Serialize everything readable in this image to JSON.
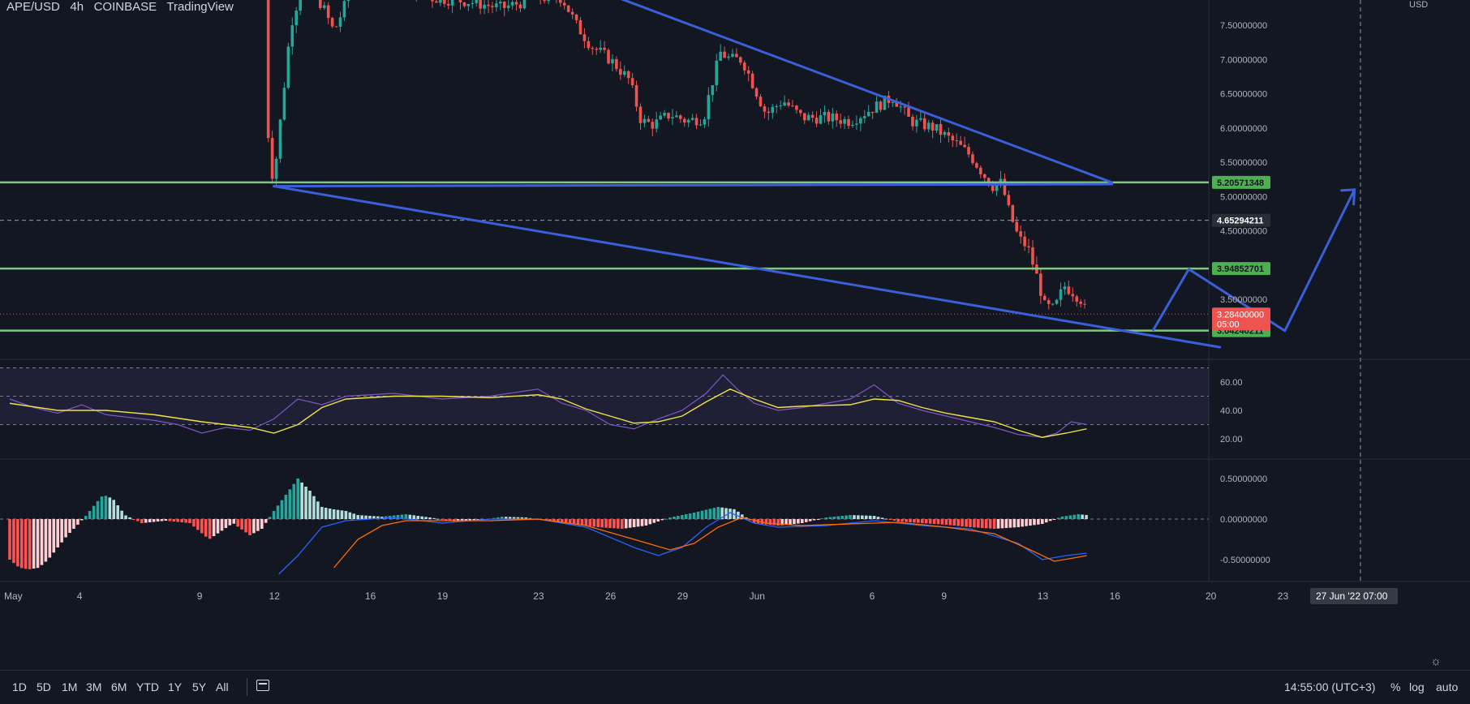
{
  "header": {
    "symbol": "APE/USD",
    "interval": "4h",
    "exchange": "COINBASE",
    "platform": "TradingView",
    "currency": "USD"
  },
  "chart_data": [
    {
      "type": "candlestick",
      "pane": "price",
      "ylim": [
        2.75,
        7.82
      ],
      "y_ticks": [
        "7.50000000",
        "7.00000000",
        "6.50000000",
        "6.00000000",
        "5.50000000",
        "5.00000000",
        "4.50000000",
        "3.50000000"
      ],
      "price_labels": [
        {
          "value": 5.20571348,
          "text": "5.20571348",
          "color": "#4caf50"
        },
        {
          "value": 4.65294211,
          "text": "4.65294211",
          "color": "#2a2e39"
        },
        {
          "value": 3.94852701,
          "text": "3.94852701",
          "color": "#4caf50"
        },
        {
          "value": 3.04240211,
          "text": "3.04240211",
          "color": "#4caf50"
        }
      ],
      "last_price": {
        "value": 3.284,
        "text": "3.28400000",
        "countdown": "05:00",
        "color": "#ef5350"
      },
      "horizontal_levels": [
        5.20571348,
        3.94852701,
        3.04240211
      ],
      "dashed_level": 4.65294211,
      "x_ticks": [
        {
          "label": "May",
          "x": 0
        },
        {
          "label": "4",
          "x": 3
        },
        {
          "label": "9",
          "x": 8
        },
        {
          "label": "12",
          "x": 11
        },
        {
          "label": "16",
          "x": 15
        },
        {
          "label": "19",
          "x": 18
        },
        {
          "label": "23",
          "x": 22
        },
        {
          "label": "26",
          "x": 25
        },
        {
          "label": "29",
          "x": 28
        },
        {
          "label": "Jun",
          "x": 31
        },
        {
          "label": "6",
          "x": 36
        },
        {
          "label": "9",
          "x": 39
        },
        {
          "label": "13",
          "x": 43
        },
        {
          "label": "16",
          "x": 46
        },
        {
          "label": "20",
          "x": 50
        },
        {
          "label": "23",
          "x": 53
        }
      ],
      "crosshair_label": "27 Jun '22   07:00",
      "close_path": [
        [
          10.6,
          7.9
        ],
        [
          10.8,
          5.5
        ],
        [
          11.0,
          5.25
        ],
        [
          11.3,
          6.2
        ],
        [
          11.7,
          7.5
        ],
        [
          12.2,
          8.1
        ],
        [
          13.0,
          7.8
        ],
        [
          13.5,
          7.4
        ],
        [
          14.2,
          8.0
        ],
        [
          15.5,
          8.2
        ],
        [
          17.5,
          7.9
        ],
        [
          19.0,
          7.85
        ],
        [
          20.5,
          7.75
        ],
        [
          22.0,
          7.9
        ],
        [
          23.0,
          7.9
        ],
        [
          23.6,
          7.5
        ],
        [
          24.2,
          7.2
        ],
        [
          25.0,
          7.0
        ],
        [
          25.8,
          6.7
        ],
        [
          26.3,
          6.1
        ],
        [
          26.8,
          6.05
        ],
        [
          27.5,
          6.2
        ],
        [
          28.2,
          6.1
        ],
        [
          28.9,
          6.15
        ],
        [
          29.2,
          6.6
        ],
        [
          29.6,
          7.1
        ],
        [
          30.0,
          7.0
        ],
        [
          30.5,
          7.0
        ],
        [
          31.0,
          6.6
        ],
        [
          31.5,
          6.2
        ],
        [
          32.2,
          6.4
        ],
        [
          33.0,
          6.15
        ],
        [
          34.0,
          6.15
        ],
        [
          35.0,
          6.1
        ],
        [
          36.0,
          6.3
        ],
        [
          36.8,
          6.45
        ],
        [
          37.5,
          6.1
        ],
        [
          38.5,
          6.0
        ],
        [
          39.5,
          5.75
        ],
        [
          40.0,
          5.6
        ],
        [
          40.5,
          5.35
        ],
        [
          40.9,
          5.15
        ],
        [
          41.3,
          5.2
        ],
        [
          41.6,
          4.8
        ],
        [
          42.0,
          4.4
        ],
        [
          42.4,
          4.25
        ],
        [
          42.8,
          3.8
        ],
        [
          43.1,
          3.4
        ],
        [
          43.5,
          3.35
        ],
        [
          43.9,
          3.7
        ],
        [
          44.3,
          3.6
        ],
        [
          44.6,
          3.5
        ],
        [
          44.85,
          3.28
        ]
      ],
      "drawings": {
        "upper_trendline": [
          [
            23.8,
            8.1
          ],
          [
            45.9,
            5.205
          ]
        ],
        "lower_trendline": [
          [
            11.0,
            5.15
          ],
          [
            50.4,
            2.8
          ]
        ],
        "flat_line": [
          [
            11.0,
            5.15
          ],
          [
            45.9,
            5.18
          ]
        ],
        "projection_path": [
          [
            47.6,
            3.04
          ],
          [
            49.1,
            3.94
          ],
          [
            53.1,
            3.04
          ],
          [
            56.0,
            5.1
          ]
        ]
      }
    },
    {
      "type": "line",
      "pane": "rsi",
      "ylim": [
        10,
        75
      ],
      "y_ticks": [
        "60.00",
        "40.00",
        "20.00"
      ],
      "bands": [
        70,
        50,
        30
      ],
      "series": [
        {
          "color": "#7e57c2",
          "values": [
            [
              0,
              48
            ],
            [
              1,
              42
            ],
            [
              2,
              38
            ],
            [
              3,
              44
            ],
            [
              4,
              37
            ],
            [
              5,
              35
            ],
            [
              6,
              33
            ],
            [
              7,
              30
            ],
            [
              8,
              24
            ],
            [
              9,
              28
            ],
            [
              10,
              26
            ],
            [
              11,
              34
            ],
            [
              12,
              48
            ],
            [
              13,
              44
            ],
            [
              14,
              50
            ],
            [
              16,
              52
            ],
            [
              18,
              48
            ],
            [
              20,
              50
            ],
            [
              22,
              55
            ],
            [
              23,
              45
            ],
            [
              24,
              40
            ],
            [
              25,
              30
            ],
            [
              26,
              27
            ],
            [
              27,
              34
            ],
            [
              28,
              40
            ],
            [
              29,
              52
            ],
            [
              29.7,
              65
            ],
            [
              30.3,
              55
            ],
            [
              31,
              45
            ],
            [
              32,
              40
            ],
            [
              33,
              42
            ],
            [
              34,
              45
            ],
            [
              35,
              48
            ],
            [
              36,
              58
            ],
            [
              37,
              45
            ],
            [
              38,
              40
            ],
            [
              39,
              36
            ],
            [
              40,
              32
            ],
            [
              41,
              28
            ],
            [
              42,
              23
            ],
            [
              43,
              21
            ],
            [
              43.6,
              24
            ],
            [
              44.2,
              32
            ],
            [
              44.85,
              30
            ]
          ]
        },
        {
          "color": "#f0e442",
          "values": [
            [
              0,
              45
            ],
            [
              2,
              40
            ],
            [
              4,
              40
            ],
            [
              6,
              37
            ],
            [
              8,
              32
            ],
            [
              10,
              28
            ],
            [
              11,
              24
            ],
            [
              12,
              30
            ],
            [
              13,
              42
            ],
            [
              14,
              48
            ],
            [
              16,
              50
            ],
            [
              18,
              50
            ],
            [
              20,
              49
            ],
            [
              22,
              51
            ],
            [
              23,
              48
            ],
            [
              24,
              41
            ],
            [
              25,
              36
            ],
            [
              26,
              31
            ],
            [
              27,
              32
            ],
            [
              28,
              36
            ],
            [
              29,
              46
            ],
            [
              30,
              55
            ],
            [
              31,
              48
            ],
            [
              32,
              42
            ],
            [
              33,
              43
            ],
            [
              35,
              44
            ],
            [
              36,
              48
            ],
            [
              37,
              47
            ],
            [
              38,
              42
            ],
            [
              39,
              38
            ],
            [
              40,
              35
            ],
            [
              41,
              32
            ],
            [
              42,
              26
            ],
            [
              43,
              21
            ],
            [
              44,
              24
            ],
            [
              44.85,
              27
            ]
          ]
        }
      ]
    },
    {
      "type": "bar+line",
      "pane": "macd",
      "ylim": [
        -0.72,
        0.8
      ],
      "y_ticks": [
        "0.50000000",
        "0.00000000",
        "-0.50000000"
      ],
      "histogram": [
        [
          0,
          -0.5
        ],
        [
          0.4,
          -0.6
        ],
        [
          0.8,
          -0.62
        ],
        [
          1.2,
          -0.6
        ],
        [
          1.6,
          -0.5
        ],
        [
          2.0,
          -0.35
        ],
        [
          2.4,
          -0.2
        ],
        [
          2.8,
          -0.08
        ],
        [
          3.2,
          0.05
        ],
        [
          3.6,
          0.2
        ],
        [
          3.9,
          0.3
        ],
        [
          4.3,
          0.25
        ],
        [
          4.8,
          0.05
        ],
        [
          5.5,
          -0.05
        ],
        [
          6.5,
          -0.02
        ],
        [
          7.5,
          -0.05
        ],
        [
          8.3,
          -0.25
        ],
        [
          8.8,
          -0.15
        ],
        [
          9.3,
          -0.05
        ],
        [
          10.0,
          -0.2
        ],
        [
          10.5,
          -0.12
        ],
        [
          11.0,
          0.1
        ],
        [
          11.5,
          0.3
        ],
        [
          12.0,
          0.5
        ],
        [
          12.5,
          0.35
        ],
        [
          13.0,
          0.15
        ],
        [
          13.5,
          0.12
        ],
        [
          14.0,
          0.1
        ],
        [
          14.5,
          0.05
        ],
        [
          15.5,
          0.03
        ],
        [
          16.5,
          0.06
        ],
        [
          17.5,
          0.02
        ],
        [
          18.5,
          -0.03
        ],
        [
          19.5,
          -0.02
        ],
        [
          20.5,
          0.03
        ],
        [
          21.5,
          0.02
        ],
        [
          22.5,
          -0.03
        ],
        [
          23.5,
          -0.06
        ],
        [
          24.5,
          -0.1
        ],
        [
          25.5,
          -0.12
        ],
        [
          26.5,
          -0.08
        ],
        [
          27.5,
          0.02
        ],
        [
          28.5,
          0.08
        ],
        [
          29.5,
          0.15
        ],
        [
          30.2,
          0.12
        ],
        [
          31.0,
          -0.05
        ],
        [
          32.0,
          -0.08
        ],
        [
          33.0,
          -0.05
        ],
        [
          34.0,
          0.02
        ],
        [
          35.0,
          0.05
        ],
        [
          36.0,
          0.04
        ],
        [
          37.0,
          -0.03
        ],
        [
          38.0,
          -0.05
        ],
        [
          39.0,
          -0.07
        ],
        [
          40.0,
          -0.1
        ],
        [
          41.0,
          -0.12
        ],
        [
          42.0,
          -0.1
        ],
        [
          43.0,
          -0.06
        ],
        [
          43.8,
          0.03
        ],
        [
          44.5,
          0.06
        ],
        [
          44.85,
          0.05
        ]
      ],
      "series": [
        {
          "color": "#2962ff",
          "values": [
            [
              11.2,
              -0.68
            ],
            [
              12.0,
              -0.45
            ],
            [
              13.0,
              -0.1
            ],
            [
              14.0,
              -0.02
            ],
            [
              16.0,
              0.02
            ],
            [
              18.0,
              -0.05
            ],
            [
              20.0,
              0.0
            ],
            [
              22.0,
              0.0
            ],
            [
              24.0,
              -0.1
            ],
            [
              26.0,
              -0.35
            ],
            [
              27.0,
              -0.45
            ],
            [
              28.0,
              -0.35
            ],
            [
              29.0,
              -0.1
            ],
            [
              30.0,
              0.08
            ],
            [
              31.0,
              -0.05
            ],
            [
              32.0,
              -0.1
            ],
            [
              34.0,
              -0.08
            ],
            [
              36.0,
              -0.02
            ],
            [
              38.0,
              -0.08
            ],
            [
              40.0,
              -0.12
            ],
            [
              42.0,
              -0.3
            ],
            [
              43.0,
              -0.5
            ],
            [
              44.0,
              -0.45
            ],
            [
              44.85,
              -0.42
            ]
          ]
        },
        {
          "color": "#ff6d00",
          "values": [
            [
              13.5,
              -0.6
            ],
            [
              14.5,
              -0.25
            ],
            [
              15.5,
              -0.08
            ],
            [
              16.5,
              -0.02
            ],
            [
              18.0,
              -0.02
            ],
            [
              20.0,
              -0.02
            ],
            [
              22.0,
              0.0
            ],
            [
              24.0,
              -0.08
            ],
            [
              26.0,
              -0.25
            ],
            [
              27.5,
              -0.38
            ],
            [
              28.5,
              -0.3
            ],
            [
              29.5,
              -0.1
            ],
            [
              30.5,
              0.02
            ],
            [
              31.5,
              -0.05
            ],
            [
              33.0,
              -0.08
            ],
            [
              35.0,
              -0.06
            ],
            [
              37.0,
              -0.04
            ],
            [
              39.0,
              -0.1
            ],
            [
              41.0,
              -0.18
            ],
            [
              42.5,
              -0.38
            ],
            [
              43.5,
              -0.52
            ],
            [
              44.3,
              -0.48
            ],
            [
              44.85,
              -0.45
            ]
          ]
        }
      ]
    }
  ],
  "timeframes": [
    "1D",
    "5D",
    "1M",
    "3M",
    "6M",
    "YTD",
    "1Y",
    "5Y",
    "All"
  ],
  "clock": "14:55:00 (UTC+3)",
  "scale_options": [
    "%",
    "log",
    "auto"
  ],
  "icons": {
    "date_range": "calendar-icon",
    "settings": "gear-icon"
  },
  "colors": {
    "background": "#131722",
    "up": "#26a69a",
    "down": "#ef5350",
    "level": "#81c784",
    "drawing": "#3a5fd9"
  }
}
